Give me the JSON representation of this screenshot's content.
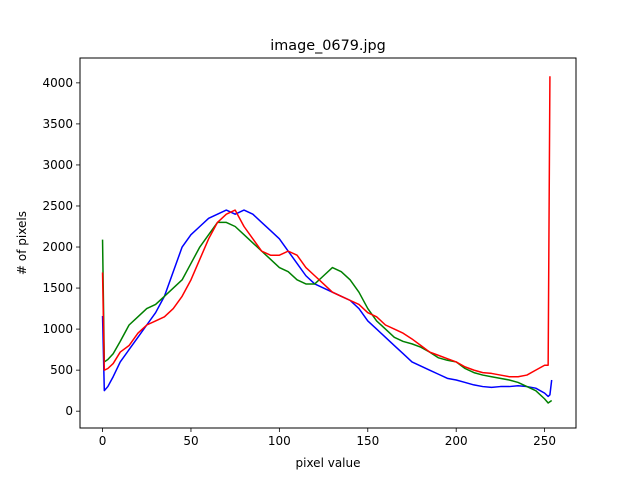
{
  "chart_data": {
    "type": "line",
    "title": "image_0679.jpg",
    "xlabel": "pixel value",
    "ylabel": "# of pixels",
    "xlim": [
      -12.75,
      267.75
    ],
    "ylim": [
      -204.9,
      4302.9
    ],
    "xticks": [
      0,
      50,
      100,
      150,
      200,
      250
    ],
    "yticks": [
      0,
      500,
      1000,
      1500,
      2000,
      2500,
      3000,
      3500,
      4000
    ],
    "grid": false,
    "series": [
      {
        "color": "#0000ff",
        "points": [
          [
            0,
            1160
          ],
          [
            1,
            250
          ],
          [
            3,
            300
          ],
          [
            6,
            420
          ],
          [
            10,
            600
          ],
          [
            15,
            750
          ],
          [
            20,
            900
          ],
          [
            25,
            1050
          ],
          [
            30,
            1200
          ],
          [
            35,
            1400
          ],
          [
            40,
            1700
          ],
          [
            45,
            2000
          ],
          [
            50,
            2150
          ],
          [
            55,
            2250
          ],
          [
            60,
            2350
          ],
          [
            65,
            2400
          ],
          [
            70,
            2450
          ],
          [
            75,
            2400
          ],
          [
            80,
            2450
          ],
          [
            85,
            2400
          ],
          [
            90,
            2300
          ],
          [
            95,
            2200
          ],
          [
            100,
            2100
          ],
          [
            105,
            1950
          ],
          [
            110,
            1800
          ],
          [
            115,
            1650
          ],
          [
            120,
            1550
          ],
          [
            125,
            1500
          ],
          [
            130,
            1450
          ],
          [
            135,
            1400
          ],
          [
            140,
            1350
          ],
          [
            145,
            1250
          ],
          [
            150,
            1100
          ],
          [
            155,
            1000
          ],
          [
            160,
            900
          ],
          [
            165,
            800
          ],
          [
            170,
            700
          ],
          [
            175,
            600
          ],
          [
            180,
            550
          ],
          [
            185,
            500
          ],
          [
            190,
            450
          ],
          [
            195,
            400
          ],
          [
            200,
            380
          ],
          [
            205,
            350
          ],
          [
            210,
            320
          ],
          [
            215,
            300
          ],
          [
            220,
            290
          ],
          [
            225,
            300
          ],
          [
            230,
            300
          ],
          [
            235,
            310
          ],
          [
            240,
            300
          ],
          [
            245,
            280
          ],
          [
            250,
            220
          ],
          [
            252,
            180
          ],
          [
            253,
            200
          ],
          [
            254,
            380
          ]
        ]
      },
      {
        "color": "#008000",
        "points": [
          [
            0,
            2090
          ],
          [
            1,
            600
          ],
          [
            3,
            630
          ],
          [
            6,
            700
          ],
          [
            10,
            850
          ],
          [
            15,
            1050
          ],
          [
            20,
            1150
          ],
          [
            25,
            1250
          ],
          [
            30,
            1300
          ],
          [
            35,
            1400
          ],
          [
            40,
            1500
          ],
          [
            45,
            1600
          ],
          [
            50,
            1800
          ],
          [
            55,
            2000
          ],
          [
            60,
            2150
          ],
          [
            65,
            2300
          ],
          [
            70,
            2300
          ],
          [
            75,
            2250
          ],
          [
            80,
            2150
          ],
          [
            85,
            2050
          ],
          [
            90,
            1950
          ],
          [
            95,
            1850
          ],
          [
            100,
            1750
          ],
          [
            105,
            1700
          ],
          [
            110,
            1600
          ],
          [
            115,
            1550
          ],
          [
            120,
            1550
          ],
          [
            125,
            1650
          ],
          [
            130,
            1750
          ],
          [
            135,
            1700
          ],
          [
            140,
            1600
          ],
          [
            145,
            1450
          ],
          [
            150,
            1250
          ],
          [
            155,
            1100
          ],
          [
            160,
            1000
          ],
          [
            165,
            900
          ],
          [
            170,
            850
          ],
          [
            175,
            820
          ],
          [
            180,
            780
          ],
          [
            185,
            720
          ],
          [
            190,
            650
          ],
          [
            195,
            620
          ],
          [
            200,
            600
          ],
          [
            205,
            520
          ],
          [
            210,
            470
          ],
          [
            215,
            440
          ],
          [
            220,
            420
          ],
          [
            225,
            400
          ],
          [
            230,
            380
          ],
          [
            235,
            350
          ],
          [
            240,
            300
          ],
          [
            245,
            250
          ],
          [
            250,
            150
          ],
          [
            252,
            100
          ],
          [
            254,
            130
          ]
        ]
      },
      {
        "color": "#ff0000",
        "points": [
          [
            0,
            1690
          ],
          [
            1,
            500
          ],
          [
            3,
            520
          ],
          [
            6,
            580
          ],
          [
            10,
            720
          ],
          [
            15,
            800
          ],
          [
            20,
            950
          ],
          [
            25,
            1050
          ],
          [
            30,
            1100
          ],
          [
            35,
            1150
          ],
          [
            40,
            1250
          ],
          [
            45,
            1400
          ],
          [
            50,
            1600
          ],
          [
            55,
            1850
          ],
          [
            60,
            2100
          ],
          [
            65,
            2300
          ],
          [
            70,
            2400
          ],
          [
            75,
            2450
          ],
          [
            80,
            2250
          ],
          [
            85,
            2100
          ],
          [
            90,
            1950
          ],
          [
            95,
            1900
          ],
          [
            100,
            1900
          ],
          [
            105,
            1950
          ],
          [
            110,
            1900
          ],
          [
            115,
            1750
          ],
          [
            120,
            1650
          ],
          [
            125,
            1550
          ],
          [
            130,
            1450
          ],
          [
            135,
            1400
          ],
          [
            140,
            1350
          ],
          [
            145,
            1300
          ],
          [
            150,
            1200
          ],
          [
            155,
            1150
          ],
          [
            160,
            1050
          ],
          [
            165,
            1000
          ],
          [
            170,
            950
          ],
          [
            175,
            880
          ],
          [
            180,
            800
          ],
          [
            185,
            720
          ],
          [
            190,
            680
          ],
          [
            195,
            640
          ],
          [
            200,
            600
          ],
          [
            205,
            540
          ],
          [
            210,
            500
          ],
          [
            215,
            470
          ],
          [
            220,
            460
          ],
          [
            225,
            440
          ],
          [
            230,
            420
          ],
          [
            235,
            420
          ],
          [
            240,
            440
          ],
          [
            245,
            500
          ],
          [
            250,
            560
          ],
          [
            252,
            560
          ],
          [
            253,
            4080
          ]
        ]
      }
    ]
  }
}
